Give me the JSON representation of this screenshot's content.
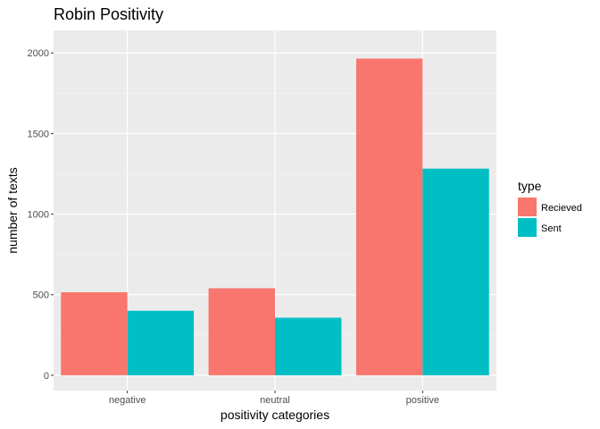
{
  "chart_data": {
    "type": "bar",
    "title": "Robin Positivity",
    "xlabel": "positivity categories",
    "ylabel": "number of texts",
    "categories": [
      "negative",
      "neutral",
      "positive"
    ],
    "series": [
      {
        "name": "Recieved",
        "color": "#F8766D",
        "values": [
          515,
          540,
          1965
        ]
      },
      {
        "name": "Sent",
        "color": "#00BFC4",
        "values": [
          400,
          357,
          1282
        ]
      }
    ],
    "ylim": [
      -95,
      2140
    ],
    "yticks": [
      0,
      500,
      1000,
      1500,
      2000
    ],
    "ytick_labels": [
      "0",
      "500",
      "1000",
      "1500",
      "2000"
    ],
    "grid": true,
    "legend": {
      "title": "type",
      "position": "right"
    },
    "colors": {
      "panel": "#EBEBEB",
      "grid_major": "#FFFFFF",
      "grid_minor": "#F5F5F5"
    }
  }
}
